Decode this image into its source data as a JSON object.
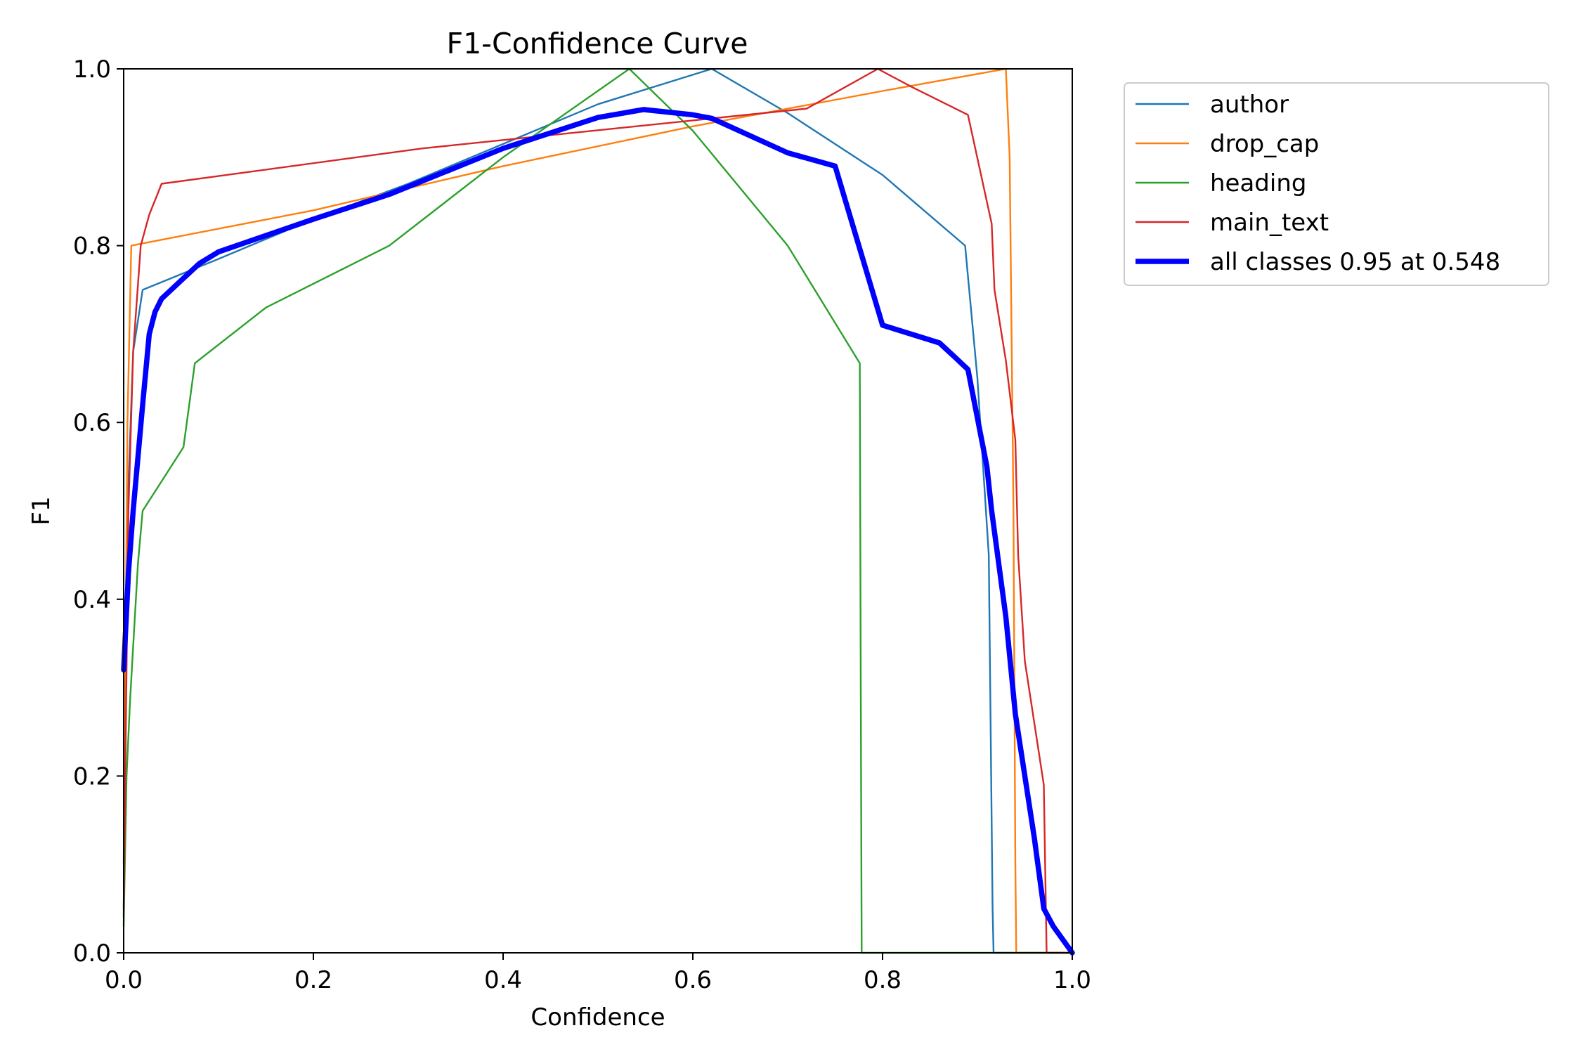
{
  "chart_data": {
    "type": "line",
    "title": "F1-Confidence Curve",
    "xlabel": "Confidence",
    "ylabel": "F1",
    "xlim": [
      0,
      1
    ],
    "ylim": [
      0,
      1
    ],
    "grid": false,
    "legend_position": "outside-top-right",
    "x_ticks": [
      "0.0",
      "0.2",
      "0.4",
      "0.6",
      "0.8",
      "1.0"
    ],
    "y_ticks": [
      "0.0",
      "0.2",
      "0.4",
      "0.6",
      "0.8",
      "1.0"
    ],
    "series": [
      {
        "name": "author",
        "color": "#1f77b4",
        "width": "thin",
        "points": [
          [
            0,
            0.04
          ],
          [
            0.004,
            0.5
          ],
          [
            0.01,
            0.68
          ],
          [
            0.02,
            0.75
          ],
          [
            0.1,
            0.785
          ],
          [
            0.2,
            0.83
          ],
          [
            0.3,
            0.87
          ],
          [
            0.4,
            0.915
          ],
          [
            0.5,
            0.96
          ],
          [
            0.62,
            1.0
          ],
          [
            0.7,
            0.95
          ],
          [
            0.8,
            0.88
          ],
          [
            0.887,
            0.8
          ],
          [
            0.9,
            0.65
          ],
          [
            0.912,
            0.45
          ],
          [
            0.916,
            0.05
          ],
          [
            0.917,
            0.0
          ],
          [
            1.0,
            0.0
          ]
        ]
      },
      {
        "name": "drop_cap",
        "color": "#ff7f0e",
        "width": "thin",
        "points": [
          [
            0,
            0.1
          ],
          [
            0.004,
            0.6
          ],
          [
            0.008,
            0.8
          ],
          [
            0.2,
            0.84
          ],
          [
            0.4,
            0.89
          ],
          [
            0.6,
            0.935
          ],
          [
            0.8,
            0.975
          ],
          [
            0.93,
            1.0
          ],
          [
            0.934,
            0.9
          ],
          [
            0.938,
            0.5
          ],
          [
            0.94,
            0.1
          ],
          [
            0.941,
            0.0
          ],
          [
            1.0,
            0.0
          ]
        ]
      },
      {
        "name": "heading",
        "color": "#2ca02c",
        "width": "thin",
        "points": [
          [
            0,
            0.03
          ],
          [
            0.003,
            0.2
          ],
          [
            0.007,
            0.29
          ],
          [
            0.015,
            0.44
          ],
          [
            0.02,
            0.5
          ],
          [
            0.063,
            0.572
          ],
          [
            0.075,
            0.667
          ],
          [
            0.15,
            0.73
          ],
          [
            0.28,
            0.8
          ],
          [
            0.4,
            0.9
          ],
          [
            0.533,
            1.0
          ],
          [
            0.6,
            0.93
          ],
          [
            0.7,
            0.8
          ],
          [
            0.776,
            0.667
          ],
          [
            0.777,
            0.3
          ],
          [
            0.778,
            0.0
          ],
          [
            1.0,
            0.0
          ]
        ]
      },
      {
        "name": "main_text",
        "color": "#d62728",
        "width": "thin",
        "points": [
          [
            0,
            0.05
          ],
          [
            0.005,
            0.5
          ],
          [
            0.01,
            0.68
          ],
          [
            0.018,
            0.8
          ],
          [
            0.027,
            0.835
          ],
          [
            0.04,
            0.87
          ],
          [
            0.315,
            0.91
          ],
          [
            0.72,
            0.955
          ],
          [
            0.795,
            1.0
          ],
          [
            0.83,
            0.98
          ],
          [
            0.89,
            0.948
          ],
          [
            0.915,
            0.825
          ],
          [
            0.918,
            0.75
          ],
          [
            0.93,
            0.67
          ],
          [
            0.94,
            0.58
          ],
          [
            0.943,
            0.45
          ],
          [
            0.95,
            0.33
          ],
          [
            0.97,
            0.19
          ],
          [
            0.973,
            0.0
          ],
          [
            1.0,
            0.0
          ]
        ]
      },
      {
        "name": "all classes 0.95 at 0.548",
        "color": "#0000ff",
        "width": "thick",
        "points": [
          [
            0,
            0.32
          ],
          [
            0.005,
            0.43
          ],
          [
            0.01,
            0.5
          ],
          [
            0.02,
            0.62
          ],
          [
            0.027,
            0.7
          ],
          [
            0.033,
            0.725
          ],
          [
            0.04,
            0.74
          ],
          [
            0.06,
            0.76
          ],
          [
            0.08,
            0.78
          ],
          [
            0.1,
            0.793
          ],
          [
            0.2,
            0.83
          ],
          [
            0.28,
            0.858
          ],
          [
            0.4,
            0.91
          ],
          [
            0.5,
            0.945
          ],
          [
            0.548,
            0.954
          ],
          [
            0.6,
            0.948
          ],
          [
            0.62,
            0.944
          ],
          [
            0.7,
            0.905
          ],
          [
            0.75,
            0.89
          ],
          [
            0.8,
            0.71
          ],
          [
            0.86,
            0.69
          ],
          [
            0.875,
            0.675
          ],
          [
            0.89,
            0.66
          ],
          [
            0.91,
            0.55
          ],
          [
            0.915,
            0.5
          ],
          [
            0.93,
            0.38
          ],
          [
            0.94,
            0.27
          ],
          [
            0.96,
            0.13
          ],
          [
            0.97,
            0.05
          ],
          [
            0.98,
            0.03
          ],
          [
            1.0,
            0.0
          ]
        ]
      }
    ]
  }
}
